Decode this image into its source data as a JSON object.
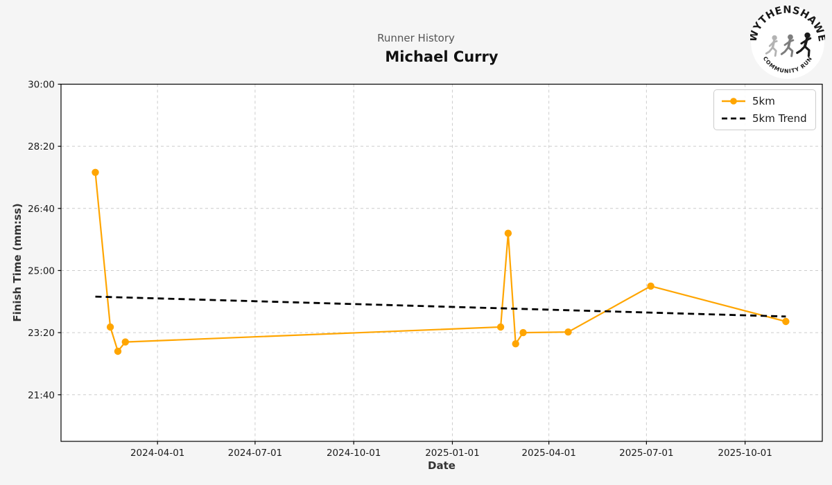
{
  "header": {
    "subtitle": "Runner History",
    "title": "Michael Curry"
  },
  "logo": {
    "arc_top": "WYTHENSHAWE",
    "arc_bottom": "COMMUNITY RUN"
  },
  "colors": {
    "series": "#FFA500",
    "trend": "#000000",
    "grid": "#cccccc",
    "figure_bg": "#f5f5f5",
    "plot_bg": "#ffffff",
    "spine": "#000000",
    "subtitle_text": "#555555"
  },
  "chart_data": {
    "type": "line",
    "title": "Michael Curry",
    "subtitle": "Runner History",
    "xlabel": "Date",
    "ylabel": "Finish Time (mm:ss)",
    "grid": true,
    "legend_position": "upper right",
    "x_ticks": [
      "2024-04-01",
      "2024-07-01",
      "2024-10-01",
      "2025-01-01",
      "2025-04-01",
      "2025-07-01",
      "2025-10-01"
    ],
    "y_ticks": [
      "30:00",
      "28:20",
      "26:40",
      "25:00",
      "23:20",
      "21:40"
    ],
    "xlim": [
      "2024-01-02",
      "2025-12-12"
    ],
    "ylim": [
      "20:25",
      "30:00"
    ],
    "series": [
      {
        "name": "5km",
        "color": "#FFA500",
        "style": "solid",
        "marker": "circle",
        "points": [
          {
            "date": "2024-02-03",
            "time": "27:38"
          },
          {
            "date": "2024-02-17",
            "time": "23:29"
          },
          {
            "date": "2024-02-24",
            "time": "22:50"
          },
          {
            "date": "2024-03-02",
            "time": "23:05"
          },
          {
            "date": "2025-02-15",
            "time": "23:29"
          },
          {
            "date": "2025-02-22",
            "time": "26:00"
          },
          {
            "date": "2025-03-01",
            "time": "23:02"
          },
          {
            "date": "2025-03-08",
            "time": "23:20"
          },
          {
            "date": "2025-04-19",
            "time": "23:21"
          },
          {
            "date": "2025-07-05",
            "time": "24:35"
          },
          {
            "date": "2025-11-08",
            "time": "23:38"
          }
        ]
      },
      {
        "name": "5km Trend",
        "color": "#000000",
        "style": "dashed",
        "marker": "none",
        "points": [
          {
            "date": "2024-02-03",
            "time": "24:18"
          },
          {
            "date": "2025-11-08",
            "time": "23:46"
          }
        ]
      }
    ]
  }
}
